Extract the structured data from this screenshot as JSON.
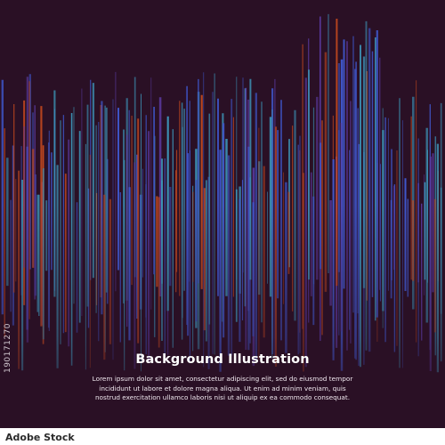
{
  "title": "Background Illustration",
  "body_lines": [
    "Lorem ipsum dolor sit amet, consectetur adipiscing elit, sed do eiusmod tempor",
    "incididunt ut labore et dolore magna aliqua. Ut enim ad minim veniam, quis",
    "nostrud exercitation ullamco laboris nisi ut aliquip ex ea commodo consequat."
  ],
  "stock_id": "190171270",
  "logo_text": "Adobe Stock",
  "colors": {
    "background": "#2a1025",
    "line_blue": "#3f56c9",
    "line_teal": "#3d95b8",
    "line_orange": "#c2481f",
    "line_purple": "#5a3aa0",
    "caption": "#ffffff"
  }
}
